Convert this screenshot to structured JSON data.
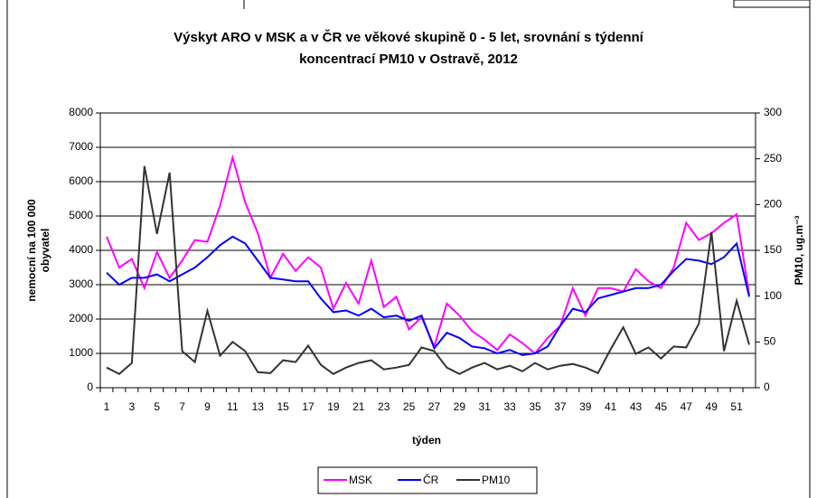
{
  "chart_data": {
    "type": "line",
    "title": [
      "Výskyt ARO v MSK a v ČR ve věkové skupině 0 - 5 let, srovnání s týdenní",
      "koncentrací PM10 v Ostravě, 2012"
    ],
    "xlabel": "týden",
    "ylabel": [
      "nemocní na 100 000",
      "obyvatel"
    ],
    "y2label": "PM10, ug.m⁻³",
    "categories": [
      "1",
      null,
      "3",
      null,
      "5",
      null,
      "7",
      null,
      "9",
      null,
      "11",
      null,
      "13",
      null,
      "15",
      null,
      "17",
      null,
      "19",
      null,
      "21",
      null,
      "23",
      null,
      "25",
      null,
      "27",
      null,
      "29",
      null,
      "31",
      null,
      "33",
      null,
      "35",
      null,
      "37",
      null,
      "39",
      null,
      "41",
      null,
      "43",
      null,
      "45",
      null,
      "47",
      null,
      "49",
      null,
      "51",
      null
    ],
    "series": [
      {
        "name": "MSK",
        "color": "#ff00ff",
        "values": [
          4400,
          3500,
          3750,
          2900,
          3950,
          3200,
          3700,
          4300,
          4250,
          5300,
          6700,
          5400,
          4500,
          3200,
          3900,
          3400,
          3800,
          3500,
          2300,
          3050,
          2450,
          3700,
          2350,
          2650,
          1700,
          2050,
          1200,
          2450,
          2100,
          1650,
          1400,
          1100,
          1550,
          1300,
          1000,
          1450,
          1800,
          2900,
          2100,
          2900,
          2900,
          2800,
          3450,
          3100,
          2900,
          3500,
          4800,
          4300,
          4500,
          4800,
          5050,
          2700
        ]
      },
      {
        "name": "ČR",
        "color": "#0000ff",
        "values": [
          3350,
          3000,
          3200,
          3200,
          3300,
          3100,
          3300,
          3500,
          3800,
          4150,
          4400,
          4200,
          3700,
          3200,
          3150,
          3100,
          3100,
          2600,
          2200,
          2250,
          2100,
          2300,
          2050,
          2100,
          1950,
          2100,
          1150,
          1600,
          1450,
          1200,
          1150,
          1000,
          1100,
          950,
          1000,
          1200,
          1800,
          2300,
          2200,
          2600,
          2700,
          2800,
          2900,
          2900,
          3000,
          3400,
          3750,
          3700,
          3600,
          3800,
          4200,
          2650
        ]
      },
      {
        "name": "PM10",
        "color": "#333333",
        "axis": "y2",
        "values": [
          22,
          15,
          27,
          242,
          168,
          235,
          40,
          28,
          84,
          35,
          50,
          40,
          17,
          16,
          30,
          28,
          46,
          25,
          15,
          22,
          27,
          30,
          20,
          22,
          25,
          44,
          40,
          22,
          15,
          22,
          27,
          20,
          24,
          18,
          27,
          20,
          24,
          26,
          22,
          16,
          42,
          66,
          37,
          44,
          32,
          45,
          44,
          70,
          170,
          40,
          95,
          47
        ]
      }
    ],
    "ylim": [
      0,
      8000
    ],
    "yticks": [
      0,
      1000,
      2000,
      3000,
      4000,
      5000,
      6000,
      7000,
      8000
    ],
    "y2lim": [
      0,
      300
    ],
    "y2ticks": [
      0,
      50,
      100,
      150,
      200,
      250,
      300
    ],
    "grid": true,
    "legend": "bottom"
  }
}
